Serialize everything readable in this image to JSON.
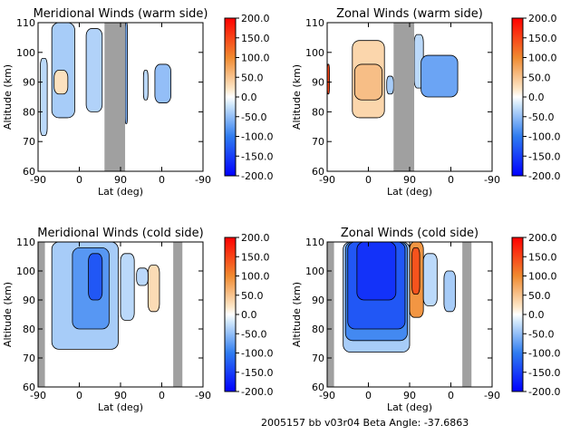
{
  "chart_data": [
    {
      "type": "heatmap",
      "title": "Meridional Winds (warm side)",
      "xlabel": "Lat (deg)",
      "ylabel": "Altitude (km)",
      "x_ticks": [
        "-90",
        "0",
        "90",
        "0",
        "-90"
      ],
      "y_ticks": [
        "60",
        "70",
        "80",
        "90",
        "100",
        "110"
      ],
      "ylim": [
        60,
        110
      ],
      "colorbar_ticks": [
        "200.0",
        "150.0",
        "100.0",
        "50.0",
        "0.0",
        "-50.0",
        "-100.0",
        "-150.0",
        "-200.0"
      ],
      "colorbar_range": [
        -200,
        200
      ],
      "no_data_band": [
        55,
        100
      ],
      "regions": [
        {
          "x": [
            -85,
            -70
          ],
          "y": [
            72,
            98
          ],
          "value": -30
        },
        {
          "x": [
            -60,
            -10
          ],
          "y": [
            78,
            110
          ],
          "value": -40
        },
        {
          "x": [
            -55,
            -25
          ],
          "y": [
            86,
            94
          ],
          "value": 25
        },
        {
          "x": [
            15,
            50
          ],
          "y": [
            80,
            108
          ],
          "value": -35
        },
        {
          "x": [
            100,
            105
          ],
          "y": [
            76,
            110
          ],
          "value": -60
        },
        {
          "x": [
            140,
            150
          ],
          "y": [
            84,
            94
          ],
          "value": -30
        },
        {
          "x": [
            165,
            200
          ],
          "y": [
            83,
            96
          ],
          "value": -50
        }
      ]
    },
    {
      "type": "heatmap",
      "title": "Zonal Winds (warm side)",
      "xlabel": "Lat (deg)",
      "ylabel": "Altitude (km)",
      "x_ticks": [
        "-90",
        "0",
        "90",
        "0",
        "-90"
      ],
      "y_ticks": [
        "60",
        "70",
        "80",
        "90",
        "100",
        "110"
      ],
      "ylim": [
        60,
        110
      ],
      "colorbar_ticks": [
        "200.0",
        "150.0",
        "100.0",
        "50.0",
        "0.0",
        "-50.0",
        "-100.0",
        "-150.0",
        "-200.0"
      ],
      "colorbar_range": [
        -200,
        200
      ],
      "no_data_band": [
        55,
        100
      ],
      "regions": [
        {
          "x": [
            -90,
            -85
          ],
          "y": [
            86,
            96
          ],
          "value": 150
        },
        {
          "x": [
            -35,
            35
          ],
          "y": [
            78,
            104
          ],
          "value": 35
        },
        {
          "x": [
            -30,
            30
          ],
          "y": [
            84,
            96
          ],
          "value": 55
        },
        {
          "x": [
            100,
            120
          ],
          "y": [
            88,
            106
          ],
          "value": -30
        },
        {
          "x": [
            115,
            195
          ],
          "y": [
            85,
            99
          ],
          "value": -70
        },
        {
          "x": [
            40,
            55
          ],
          "y": [
            86,
            92
          ],
          "value": -40
        }
      ]
    },
    {
      "type": "heatmap",
      "title": "Meridional Winds (cold side)",
      "xlabel": "Lat (deg)",
      "ylabel": "Altitude (km)",
      "x_ticks": [
        "-90",
        "0",
        "90",
        "0",
        "-90"
      ],
      "y_ticks": [
        "60",
        "70",
        "80",
        "90",
        "100",
        "110"
      ],
      "ylim": [
        60,
        110
      ],
      "colorbar_ticks": [
        "200.0",
        "150.0",
        "100.0",
        "50.0",
        "0.0",
        "-50.0",
        "-100.0",
        "-150.0",
        "-200.0"
      ],
      "colorbar_range": [
        -200,
        200
      ],
      "no_data_band": [
        -90,
        -75
      ],
      "no_data_band_2": [
        205,
        225
      ],
      "regions": [
        {
          "x": [
            -60,
            85
          ],
          "y": [
            73,
            110
          ],
          "value": -40
        },
        {
          "x": [
            -15,
            65
          ],
          "y": [
            80,
            108
          ],
          "value": -80
        },
        {
          "x": [
            20,
            50
          ],
          "y": [
            90,
            106
          ],
          "value": -130
        },
        {
          "x": [
            90,
            120
          ],
          "y": [
            83,
            106
          ],
          "value": -30
        },
        {
          "x": [
            150,
            175
          ],
          "y": [
            86,
            102
          ],
          "value": 30
        },
        {
          "x": [
            125,
            150
          ],
          "y": [
            95,
            101
          ],
          "value": -30
        }
      ]
    },
    {
      "type": "heatmap",
      "title": "Zonal Winds (cold side)",
      "xlabel": "Lat (deg)",
      "ylabel": "Altitude (km)",
      "x_ticks": [
        "-90",
        "0",
        "90",
        "0",
        "-90"
      ],
      "y_ticks": [
        "60",
        "70",
        "80",
        "90",
        "100",
        "110"
      ],
      "ylim": [
        60,
        110
      ],
      "colorbar_ticks": [
        "200.0",
        "150.0",
        "100.0",
        "50.0",
        "0.0",
        "-50.0",
        "-100.0",
        "-150.0",
        "-200.0"
      ],
      "colorbar_range": [
        -200,
        200
      ],
      "no_data_band": [
        -90,
        -75
      ],
      "no_data_band_2": [
        205,
        225
      ],
      "regions": [
        {
          "x": [
            -55,
            90
          ],
          "y": [
            72,
            110
          ],
          "value": -40
        },
        {
          "x": [
            -50,
            85
          ],
          "y": [
            76,
            110
          ],
          "value": -90
        },
        {
          "x": [
            -45,
            80
          ],
          "y": [
            80,
            110
          ],
          "value": -130
        },
        {
          "x": [
            -25,
            60
          ],
          "y": [
            90,
            110
          ],
          "value": -160
        },
        {
          "x": [
            90,
            120
          ],
          "y": [
            84,
            110
          ],
          "value": 90
        },
        {
          "x": [
            95,
            112
          ],
          "y": [
            92,
            108
          ],
          "value": 140
        },
        {
          "x": [
            120,
            150
          ],
          "y": [
            88,
            106
          ],
          "value": -30
        },
        {
          "x": [
            165,
            190
          ],
          "y": [
            86,
            100
          ],
          "value": -40
        }
      ]
    }
  ],
  "footer": "2005157 bb v03r04  Beta Angle: -37.6863"
}
